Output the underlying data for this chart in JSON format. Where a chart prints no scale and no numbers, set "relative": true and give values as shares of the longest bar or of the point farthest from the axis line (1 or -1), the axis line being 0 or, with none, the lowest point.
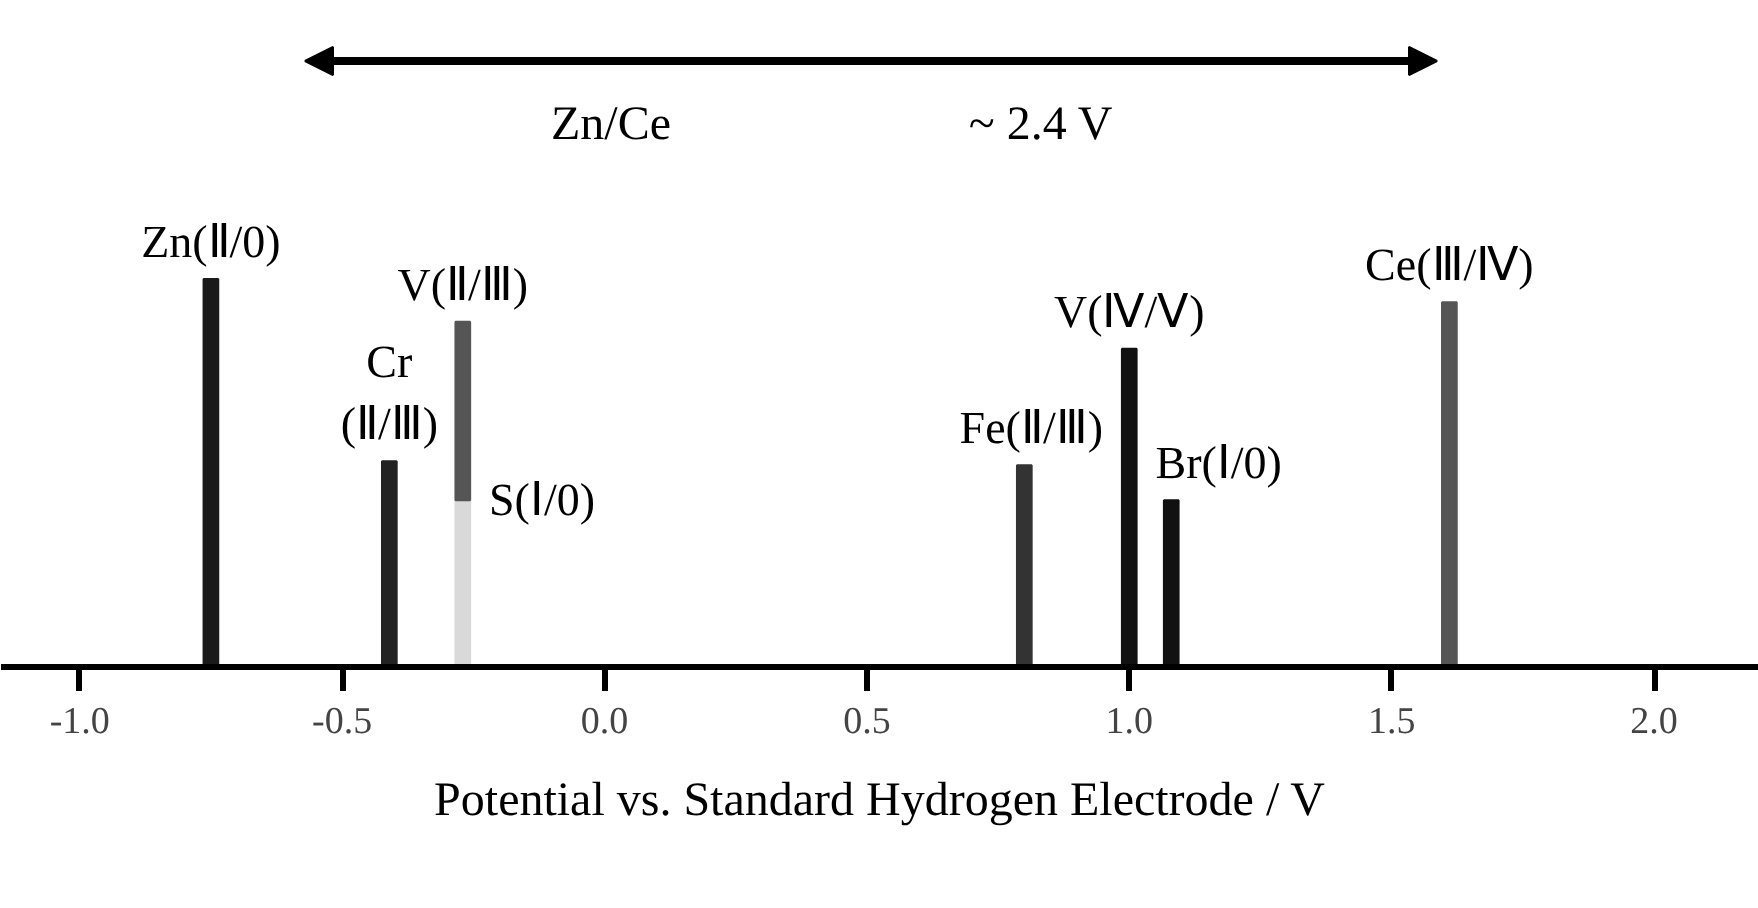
{
  "chart_data": {
    "type": "bar",
    "relative": true,
    "stacked": true,
    "xlabel": "Potential vs. Standard Hydrogen Electrode / V",
    "xlim": [
      -1.15,
      2.2
    ],
    "xticks": [
      {
        "value": -1.0,
        "label": "-1.0"
      },
      {
        "value": -0.5,
        "label": "-0.5"
      },
      {
        "value": 0.0,
        "label": "0.0"
      },
      {
        "value": 0.5,
        "label": "0.5"
      },
      {
        "value": 1.0,
        "label": "1.0"
      },
      {
        "value": 1.5,
        "label": "1.5"
      },
      {
        "value": 2.0,
        "label": "2.0"
      }
    ],
    "x": [
      -0.75,
      -0.41,
      -0.27,
      0.8,
      1.0,
      1.08,
      1.61
    ],
    "series": [
      {
        "colors": [
          "#1a1a1a",
          "#222222",
          "#d9d9d9",
          "#333333",
          "#111111",
          "#111111",
          "#555555"
        ],
        "values": [
          1.0,
          0.53,
          0.43,
          0.52,
          0.82,
          0.43,
          0.94
        ]
      },
      {
        "color": "#555555",
        "values": [
          null,
          null,
          0.46,
          null,
          null,
          null,
          null
        ]
      }
    ],
    "annotations": [
      {
        "text": "Zn(Ⅱ/0)",
        "x": -0.75,
        "y": 1.0
      },
      {
        "text": "Cr\n(Ⅱ/Ⅲ)",
        "x": -0.41,
        "y": 0.53
      },
      {
        "text": "S(Ⅰ/0)",
        "x": -0.27,
        "y": 0.43
      },
      {
        "text": "V(Ⅱ/Ⅲ)",
        "x": -0.27,
        "y": 0.89
      },
      {
        "text": "Fe(Ⅱ/Ⅲ)",
        "x": 0.8,
        "y": 0.52
      },
      {
        "text": "V(Ⅳ/Ⅴ)",
        "x": 1.0,
        "y": 0.82
      },
      {
        "text": "Br(Ⅰ/0)",
        "x": 1.08,
        "y": 0.43
      },
      {
        "text": "Ce(Ⅲ/Ⅳ)",
        "x": 1.61,
        "y": 0.94
      },
      "Zn/Ce",
      "~ 2.4 V"
    ]
  }
}
